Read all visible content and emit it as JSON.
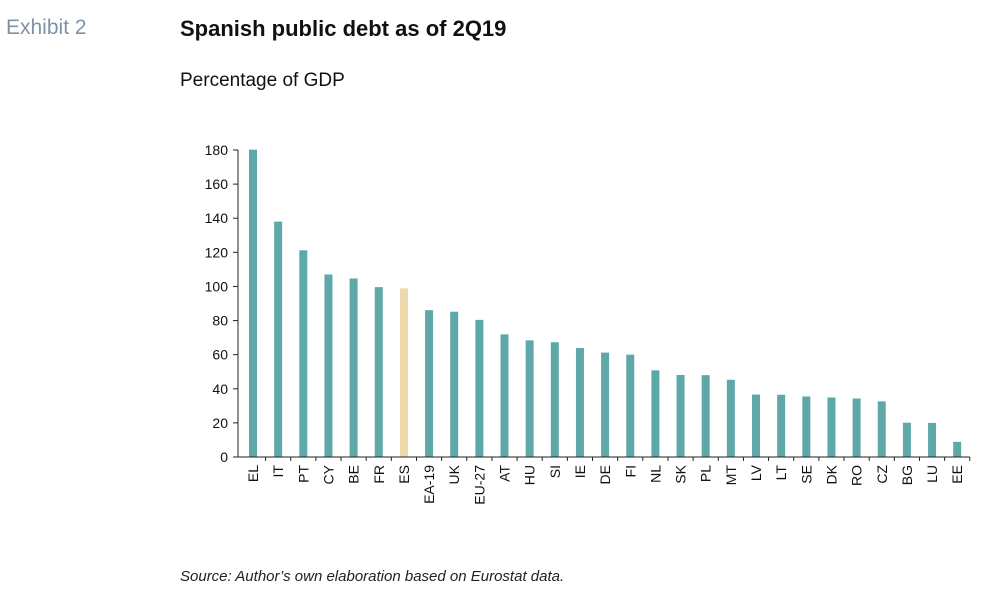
{
  "header": {
    "exhibit": "Exhibit 2",
    "title": "Spanish public debt as of 2Q19",
    "subtitle": "Percentage of GDP"
  },
  "footer": {
    "source": "Source: Author’s own elaboration based on Eurostat data."
  },
  "colors": {
    "bar": "#5fa8aa",
    "highlight": "#edd9ac",
    "axis": "#222222"
  },
  "chart_data": {
    "type": "bar",
    "title": "Spanish public debt as of 2Q19",
    "subtitle": "Percentage of GDP",
    "xlabel": "",
    "ylabel": "",
    "ylim": [
      0,
      180
    ],
    "yticks": [
      0,
      20,
      40,
      60,
      80,
      100,
      120,
      140,
      160,
      180
    ],
    "grid": false,
    "legend": "none",
    "categories": [
      "EL",
      "IT",
      "PT",
      "CY",
      "BE",
      "FR",
      "ES",
      "EA-19",
      "UK",
      "EU-27",
      "AT",
      "HU",
      "SI",
      "IE",
      "DE",
      "FI",
      "NL",
      "SK",
      "PL",
      "MT",
      "LV",
      "LT",
      "SE",
      "DK",
      "RO",
      "CZ",
      "BG",
      "LU",
      "EE"
    ],
    "values": [
      180.2,
      138.0,
      121.2,
      107.0,
      104.7,
      99.6,
      98.9,
      86.1,
      85.2,
      80.4,
      71.9,
      68.4,
      67.3,
      63.9,
      61.2,
      60.0,
      50.8,
      48.1,
      48.0,
      45.3,
      36.6,
      36.5,
      35.5,
      34.9,
      34.3,
      32.6,
      20.1,
      20.0,
      8.9
    ],
    "highlight": "ES"
  }
}
